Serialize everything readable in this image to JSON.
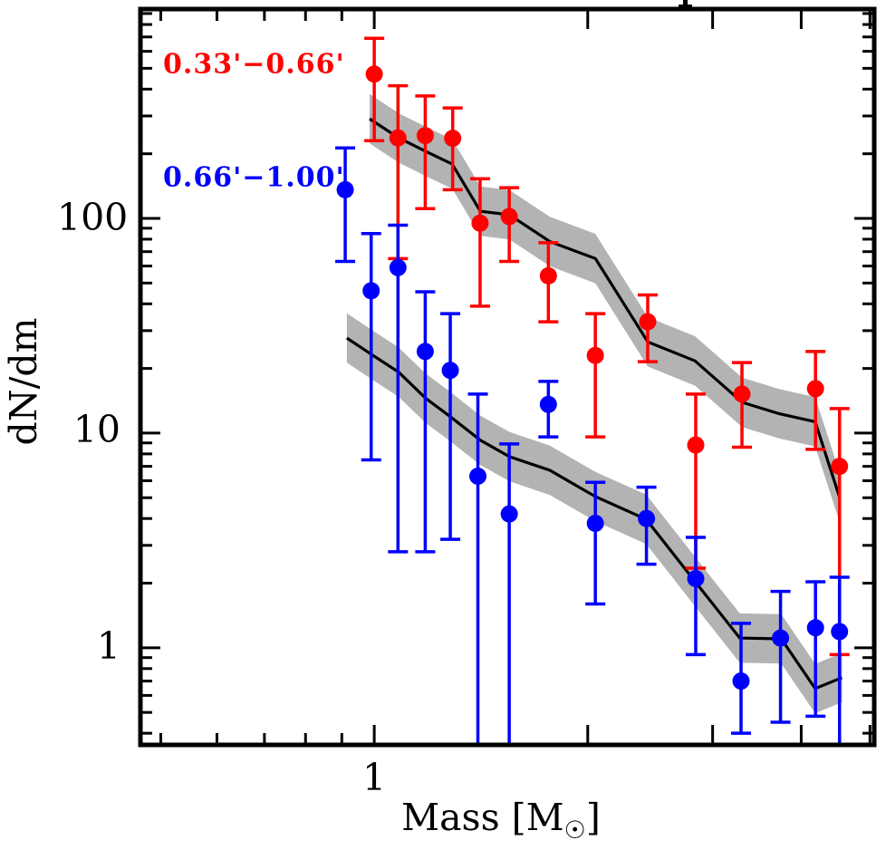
{
  "figure": {
    "xlabel_parts": [
      "Mass [M",
      "☉",
      "]"
    ],
    "ylabel": "dN/dm",
    "cropped_title_remnant": true,
    "x_tick_labels": [
      {
        "value": 1,
        "label": "1"
      }
    ],
    "y_tick_labels": [
      {
        "value": 1,
        "label": "1"
      },
      {
        "value": 10,
        "label": "10"
      },
      {
        "value": 100,
        "label": "100"
      }
    ]
  },
  "legend": {
    "items": [
      {
        "label": "0.33'−0.66'",
        "color": "#ff0000"
      },
      {
        "label": "0.66'−1.00'",
        "color": "#0000ff"
      }
    ],
    "position": "upper-left"
  },
  "chart_data": {
    "type": "scatter",
    "xscale": "log",
    "yscale": "log",
    "xlim": [
      0.468,
      5.07
    ],
    "ylim": [
      0.353,
      944
    ],
    "grid": false,
    "xlabel": "Mass [M_sun]",
    "ylabel": "dN/dm",
    "axes": {
      "x_major_ticks": [
        1,
        2,
        3,
        4,
        5
      ],
      "x_minor_ticks": [
        0.5,
        0.6,
        0.7,
        0.8,
        0.9
      ],
      "y_major_ticks": [
        1,
        10,
        100
      ],
      "y_minor_ticks": [
        0.4,
        0.5,
        0.6,
        0.7,
        0.8,
        0.9,
        2,
        3,
        4,
        5,
        6,
        7,
        8,
        9,
        20,
        30,
        40,
        50,
        60,
        70,
        80,
        90,
        200,
        300,
        400,
        500,
        600,
        700,
        800,
        900
      ]
    },
    "series": [
      {
        "name": "0.33'-0.66'",
        "color": "#ff0000",
        "marker": "circle",
        "points": [
          {
            "x": 1.0,
            "y": 470,
            "lo": 230,
            "hi": 690
          },
          {
            "x": 1.08,
            "y": 237,
            "lo": 65,
            "hi": 415
          },
          {
            "x": 1.18,
            "y": 243,
            "lo": 111,
            "hi": 372
          },
          {
            "x": 1.29,
            "y": 236,
            "lo": 136,
            "hi": 327
          },
          {
            "x": 1.41,
            "y": 95,
            "lo": 39,
            "hi": 153
          },
          {
            "x": 1.55,
            "y": 102,
            "lo": 63,
            "hi": 139
          },
          {
            "x": 1.76,
            "y": 54,
            "lo": 33,
            "hi": 77
          },
          {
            "x": 2.05,
            "y": 23,
            "lo": 9.6,
            "hi": 36
          },
          {
            "x": 2.43,
            "y": 33,
            "lo": 21.5,
            "hi": 44
          },
          {
            "x": 2.84,
            "y": 8.8,
            "lo": 2.35,
            "hi": 15.2
          },
          {
            "x": 3.3,
            "y": 15.2,
            "lo": 8.6,
            "hi": 21.3
          },
          {
            "x": 4.19,
            "y": 16.1,
            "lo": 8.4,
            "hi": 24
          },
          {
            "x": 4.53,
            "y": 7.0,
            "lo": 0.93,
            "hi": 13.0
          }
        ]
      },
      {
        "name": "0.66'-1.00'",
        "color": "#0000ff",
        "marker": "circle",
        "points": [
          {
            "x": 0.91,
            "y": 136,
            "lo": 63,
            "hi": 213
          },
          {
            "x": 0.99,
            "y": 46,
            "lo": 7.5,
            "hi": 85
          },
          {
            "x": 1.08,
            "y": 59,
            "lo": 2.8,
            "hi": 93
          },
          {
            "x": 1.18,
            "y": 24,
            "lo": 2.8,
            "hi": 45.5
          },
          {
            "x": 1.28,
            "y": 19.6,
            "lo": 3.2,
            "hi": 36
          },
          {
            "x": 1.4,
            "y": 6.3,
            "lo": 0.3,
            "hi": 15.2
          },
          {
            "x": 1.55,
            "y": 4.2,
            "lo": 0.3,
            "hi": 8.9
          },
          {
            "x": 1.76,
            "y": 13.6,
            "lo": 9.6,
            "hi": 17.4
          },
          {
            "x": 2.05,
            "y": 3.8,
            "lo": 1.6,
            "hi": 5.9
          },
          {
            "x": 2.42,
            "y": 4.0,
            "lo": 2.45,
            "hi": 5.6
          },
          {
            "x": 2.84,
            "y": 2.1,
            "lo": 0.93,
            "hi": 3.27
          },
          {
            "x": 3.29,
            "y": 0.7,
            "lo": 0.4,
            "hi": 1.3
          },
          {
            "x": 3.74,
            "y": 1.11,
            "lo": 0.45,
            "hi": 1.83
          },
          {
            "x": 4.19,
            "y": 1.24,
            "lo": 0.48,
            "hi": 2.03
          },
          {
            "x": 4.53,
            "y": 1.19,
            "lo": 0.3,
            "hi": 2.13
          }
        ]
      }
    ],
    "models": [
      {
        "name": "model-0.33-0.66",
        "line_color": "#000000",
        "band_color": "#b3b3b3",
        "band_dex": 0.115,
        "points": [
          [
            0.985,
            291
          ],
          [
            1.083,
            237
          ],
          [
            1.182,
            205
          ],
          [
            1.288,
            179
          ],
          [
            1.411,
            108
          ],
          [
            1.551,
            104
          ],
          [
            1.769,
            78
          ],
          [
            2.05,
            65
          ],
          [
            2.431,
            26.6
          ],
          [
            2.833,
            21.7
          ],
          [
            3.302,
            13.9
          ],
          [
            3.726,
            12.3
          ],
          [
            4.185,
            11.3
          ],
          [
            4.533,
            5.0
          ]
        ]
      },
      {
        "name": "model-0.66-1.00",
        "line_color": "#000000",
        "band_color": "#b3b3b3",
        "band_dex": 0.115,
        "points": [
          [
            0.915,
            27.7
          ],
          [
            0.994,
            23.1
          ],
          [
            1.083,
            19.2
          ],
          [
            1.182,
            14.5
          ],
          [
            1.277,
            12.0
          ],
          [
            1.411,
            9.26
          ],
          [
            1.551,
            7.77
          ],
          [
            1.769,
            6.71
          ],
          [
            2.05,
            5.06
          ],
          [
            2.417,
            3.97
          ],
          [
            2.842,
            2.01
          ],
          [
            3.277,
            1.11
          ],
          [
            3.749,
            1.1
          ],
          [
            4.185,
            0.646
          ],
          [
            4.566,
            0.726
          ]
        ]
      }
    ]
  }
}
